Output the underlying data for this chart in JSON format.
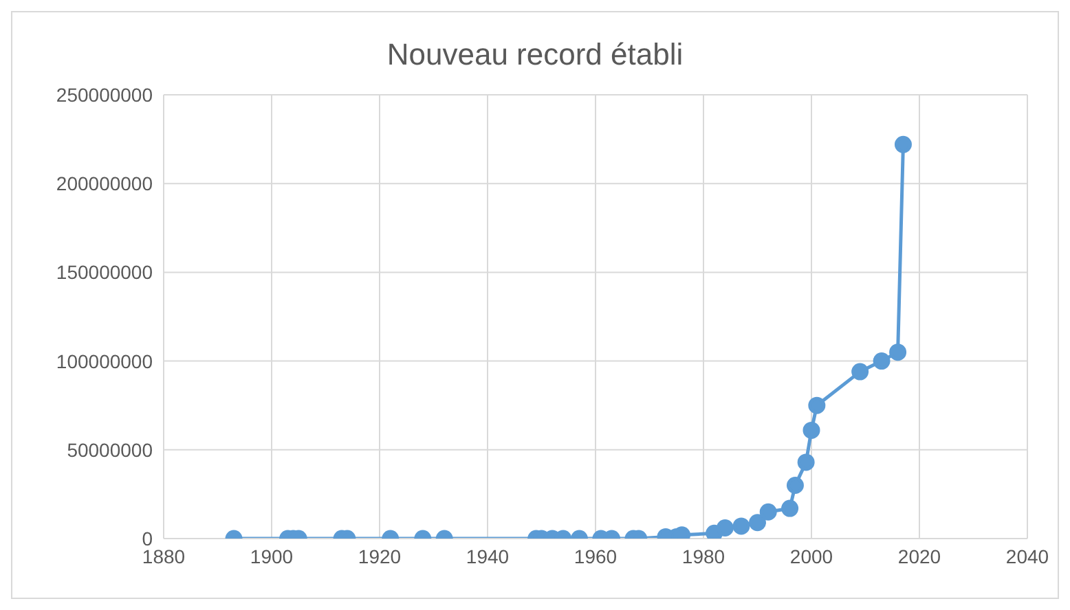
{
  "chart_data": {
    "type": "line",
    "title": "Nouveau record établi",
    "series": [
      {
        "color": "#5b9bd5",
        "x": [
          1893,
          1903,
          1904,
          1905,
          1913,
          1914,
          1922,
          1928,
          1932,
          1949,
          1950,
          1952,
          1954,
          1957,
          1961,
          1963,
          1967,
          1968,
          1973,
          1975,
          1976,
          1982,
          1984,
          1987,
          1990,
          1992,
          1996,
          1997,
          1999,
          2000,
          2001,
          2009,
          2013,
          2016,
          2017
        ],
        "values": [
          0,
          0,
          0,
          0,
          0,
          0,
          0,
          0,
          0,
          0,
          0,
          0,
          0,
          0,
          0,
          0,
          0,
          0,
          1000000,
          1000000,
          2000000,
          3000000,
          6000000,
          7000000,
          9000000,
          15000000,
          17000000,
          30000000,
          43000000,
          61000000,
          75000000,
          94000000,
          100000000,
          105000000,
          222000000
        ]
      }
    ],
    "xlim": [
      1880,
      2040
    ],
    "xticks": [
      1880,
      1900,
      1920,
      1940,
      1960,
      1980,
      2000,
      2020,
      2040
    ],
    "ylim": [
      0,
      250000000
    ],
    "yticks": [
      0,
      50000000,
      100000000,
      150000000,
      200000000,
      250000000
    ],
    "grid": true,
    "marker": "circle",
    "line_style": "solid"
  }
}
